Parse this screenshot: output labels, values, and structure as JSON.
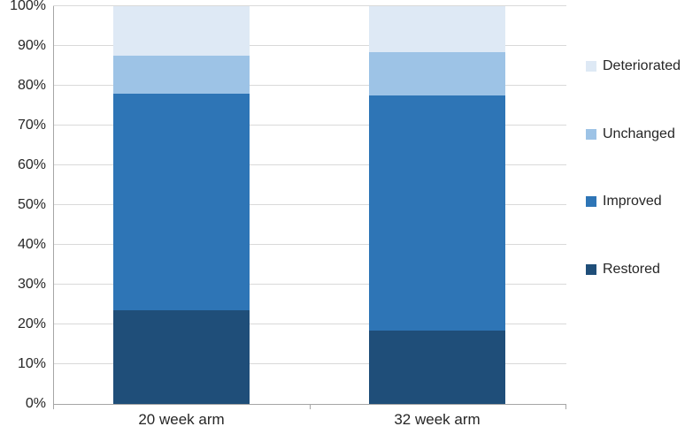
{
  "chart_data": {
    "type": "bar",
    "variant": "stacked-100-percent-column",
    "title": "",
    "categories": [
      "20 week arm",
      "32 week arm"
    ],
    "series": [
      {
        "name": "Restored",
        "color": "#1F4E79",
        "values": [
          23.5,
          18.5
        ]
      },
      {
        "name": "Improved",
        "color": "#2E75B6",
        "values": [
          54.5,
          59.0
        ]
      },
      {
        "name": "Unchanged",
        "color": "#9DC3E6",
        "values": [
          9.5,
          11.0
        ]
      },
      {
        "name": "Deteriorated",
        "color": "#DEE9F5",
        "values": [
          12.5,
          11.5
        ]
      }
    ],
    "stack_order_bottom_to_top": [
      "Restored",
      "Improved",
      "Unchanged",
      "Deteriorated"
    ],
    "y_axis": {
      "min": 0,
      "max": 100,
      "step": 10,
      "unit": "%",
      "tick_labels": [
        "0%",
        "10%",
        "20%",
        "30%",
        "40%",
        "50%",
        "60%",
        "70%",
        "80%",
        "90%",
        "100%"
      ]
    },
    "x_axis": {
      "tick_labels": [
        "20 week arm",
        "32 week arm"
      ]
    },
    "legend": {
      "position": "right",
      "entries": [
        "Deteriorated",
        "Unchanged",
        "Improved",
        "Restored"
      ]
    },
    "grid": true,
    "colors": {
      "gridline": "#D9D9D9",
      "axis": "#A6A6A6",
      "text": "#262626",
      "background": "#FFFFFF"
    }
  }
}
